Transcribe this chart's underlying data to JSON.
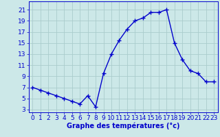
{
  "hours": [
    0,
    1,
    2,
    3,
    4,
    5,
    6,
    7,
    8,
    9,
    10,
    11,
    12,
    13,
    14,
    15,
    16,
    17,
    18,
    19,
    20,
    21,
    22,
    23
  ],
  "temperatures": [
    7,
    6.5,
    6,
    5.5,
    5,
    4.5,
    4,
    5.5,
    3.5,
    9.5,
    13,
    15.5,
    17.5,
    19,
    19.5,
    20.5,
    20.5,
    21,
    15,
    12,
    10,
    9.5,
    8,
    8
  ],
  "line_color": "#0000cc",
  "marker": "+",
  "bg_color": "#cce8e8",
  "grid_color": "#aacccc",
  "xlabel": "Graphe des températures (°c)",
  "xlabel_color": "#0000cc",
  "xlabel_fontsize": 7,
  "tick_color": "#0000cc",
  "tick_fontsize": 6.5,
  "yticks": [
    3,
    5,
    7,
    9,
    11,
    13,
    15,
    17,
    19,
    21
  ],
  "ylim": [
    2.5,
    22.5
  ],
  "xlim": [
    -0.5,
    23.5
  ],
  "linewidth": 1.0,
  "markersize": 4
}
